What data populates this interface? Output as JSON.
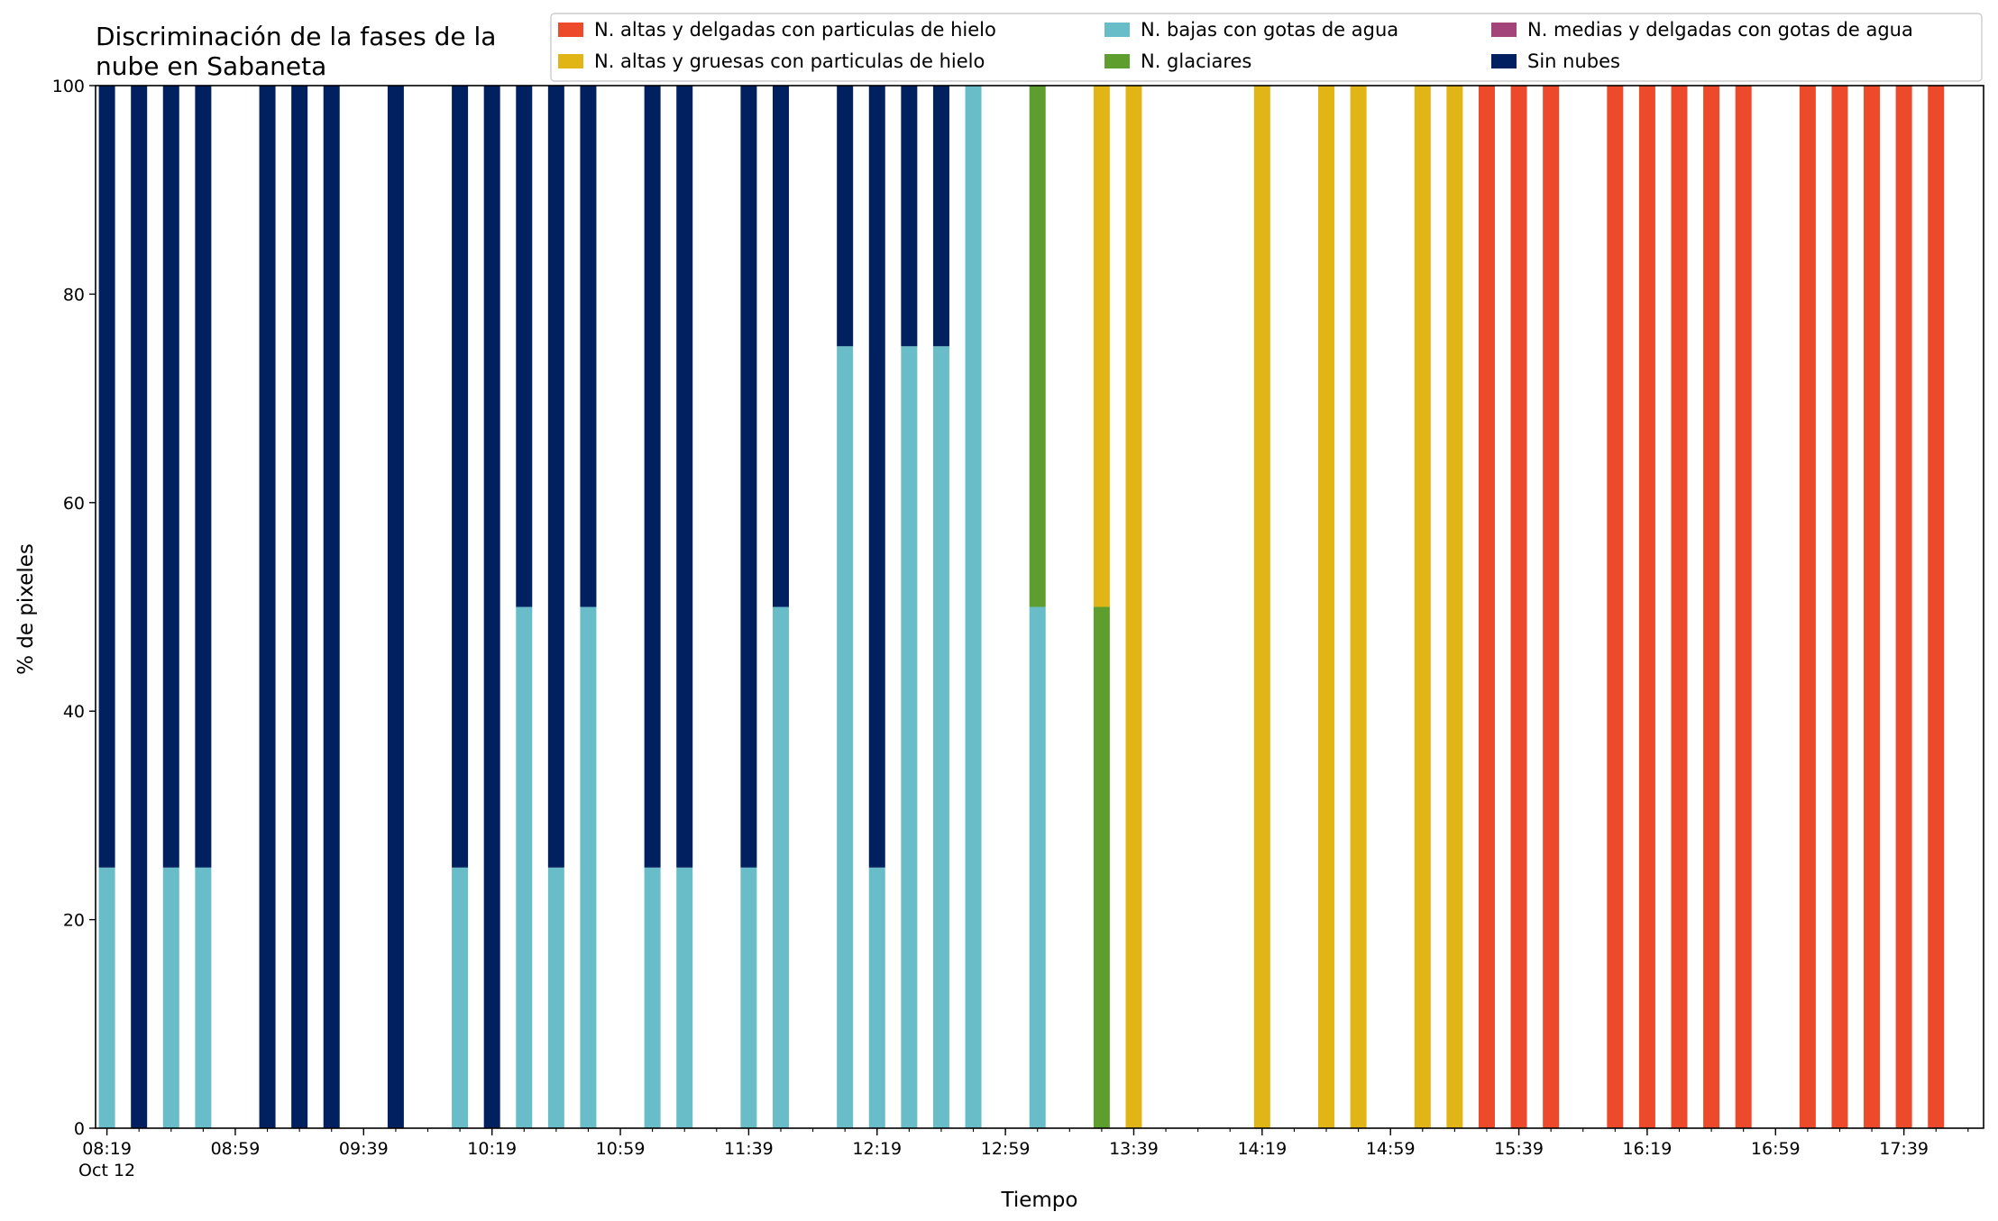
{
  "chart_data": {
    "type": "bar",
    "stacked": true,
    "title_lines": [
      "Discriminación de la fases de la",
      "nube en Sabaneta"
    ],
    "xlabel": "Tiempo",
    "ylabel": "% de pixeles",
    "ylim": [
      0,
      100
    ],
    "yticks": [
      0,
      20,
      40,
      60,
      80,
      100
    ],
    "x_start_minutes": 499,
    "x_end_minutes": 1084,
    "xtick_step_minutes": 40,
    "xminor_step_minutes": 10,
    "xtick_labels": [
      "08:19",
      "08:59",
      "09:39",
      "10:19",
      "10:59",
      "11:39",
      "12:19",
      "12:59",
      "13:39",
      "14:19",
      "14:59",
      "15:39",
      "16:19",
      "16:59",
      "17:39"
    ],
    "xtick_date": "Oct 12",
    "grid": false,
    "legend_position": "top-right",
    "legend_columns": 3,
    "series": [
      {
        "name": "N. altas y delgadas con particulas de hielo",
        "color": "#ED4A2C"
      },
      {
        "name": "N. altas y gruesas con particulas de hielo",
        "color": "#E2B516"
      },
      {
        "name": "N. bajas con gotas de agua",
        "color": "#68BDC8"
      },
      {
        "name": "N. glaciares",
        "color": "#5E9E2E"
      },
      {
        "name": "N. medias y delgadas con gotas de agua",
        "color": "#A3457A"
      },
      {
        "name": "Sin nubes",
        "color": "#012060"
      }
    ],
    "stack_order": [
      "N. bajas con gotas de agua",
      "N. glaciares",
      "N. altas y gruesas con particulas de hielo",
      "N. altas y delgadas con particulas de hielo",
      "N. medias y delgadas con gotas de agua",
      "Sin nubes"
    ],
    "bars": [
      {
        "time": "08:19",
        "values": {
          "N. bajas con gotas de agua": 25,
          "Sin nubes": 75
        }
      },
      {
        "time": "08:29",
        "values": {
          "Sin nubes": 100
        }
      },
      {
        "time": "08:39",
        "values": {
          "N. bajas con gotas de agua": 25,
          "Sin nubes": 75
        }
      },
      {
        "time": "08:49",
        "values": {
          "N. bajas con gotas de agua": 25,
          "Sin nubes": 75
        }
      },
      {
        "time": "09:09",
        "values": {
          "Sin nubes": 100
        }
      },
      {
        "time": "09:19",
        "values": {
          "Sin nubes": 100
        }
      },
      {
        "time": "09:29",
        "values": {
          "Sin nubes": 100
        }
      },
      {
        "time": "09:49",
        "values": {
          "Sin nubes": 100
        }
      },
      {
        "time": "10:09",
        "values": {
          "N. bajas con gotas de agua": 25,
          "Sin nubes": 75
        }
      },
      {
        "time": "10:19",
        "values": {
          "Sin nubes": 100
        }
      },
      {
        "time": "10:29",
        "values": {
          "N. bajas con gotas de agua": 50,
          "Sin nubes": 50
        }
      },
      {
        "time": "10:39",
        "values": {
          "N. bajas con gotas de agua": 25,
          "Sin nubes": 75
        }
      },
      {
        "time": "10:49",
        "values": {
          "N. bajas con gotas de agua": 50,
          "Sin nubes": 50
        }
      },
      {
        "time": "11:09",
        "values": {
          "N. bajas con gotas de agua": 25,
          "Sin nubes": 75
        }
      },
      {
        "time": "11:19",
        "values": {
          "N. bajas con gotas de agua": 25,
          "Sin nubes": 75
        }
      },
      {
        "time": "11:39",
        "values": {
          "N. bajas con gotas de agua": 25,
          "Sin nubes": 75
        }
      },
      {
        "time": "11:49",
        "values": {
          "N. bajas con gotas de agua": 50,
          "Sin nubes": 50
        }
      },
      {
        "time": "12:09",
        "values": {
          "N. bajas con gotas de agua": 75,
          "Sin nubes": 25
        }
      },
      {
        "time": "12:19",
        "values": {
          "N. bajas con gotas de agua": 25,
          "Sin nubes": 75
        }
      },
      {
        "time": "12:29",
        "values": {
          "N. bajas con gotas de agua": 75,
          "Sin nubes": 25
        }
      },
      {
        "time": "12:39",
        "values": {
          "N. bajas con gotas de agua": 75,
          "Sin nubes": 25
        }
      },
      {
        "time": "12:49",
        "values": {
          "N. bajas con gotas de agua": 100
        }
      },
      {
        "time": "13:09",
        "values": {
          "N. bajas con gotas de agua": 50,
          "N. glaciares": 50
        }
      },
      {
        "time": "13:29",
        "values": {
          "N. altas y gruesas con particulas de hielo": 50,
          "N. glaciares": 50
        }
      },
      {
        "time": "13:39",
        "values": {
          "N. altas y gruesas con particulas de hielo": 100
        }
      },
      {
        "time": "14:19",
        "values": {
          "N. altas y gruesas con particulas de hielo": 100
        }
      },
      {
        "time": "14:39",
        "values": {
          "N. altas y gruesas con particulas de hielo": 100
        }
      },
      {
        "time": "14:49",
        "values": {
          "N. altas y gruesas con particulas de hielo": 100
        }
      },
      {
        "time": "15:09",
        "values": {
          "N. altas y gruesas con particulas de hielo": 100
        }
      },
      {
        "time": "15:19",
        "values": {
          "N. altas y gruesas con particulas de hielo": 100
        }
      },
      {
        "time": "15:29",
        "values": {
          "N. altas y delgadas con particulas de hielo": 100
        }
      },
      {
        "time": "15:39",
        "values": {
          "N. altas y delgadas con particulas de hielo": 100
        }
      },
      {
        "time": "15:49",
        "values": {
          "N. altas y delgadas con particulas de hielo": 100
        }
      },
      {
        "time": "16:09",
        "values": {
          "N. altas y delgadas con particulas de hielo": 100
        }
      },
      {
        "time": "16:19",
        "values": {
          "N. altas y delgadas con particulas de hielo": 100
        }
      },
      {
        "time": "16:29",
        "values": {
          "N. altas y delgadas con particulas de hielo": 100
        }
      },
      {
        "time": "16:39",
        "values": {
          "N. altas y delgadas con particulas de hielo": 100
        }
      },
      {
        "time": "16:49",
        "values": {
          "N. altas y delgadas con particulas de hielo": 100
        }
      },
      {
        "time": "17:09",
        "values": {
          "N. altas y delgadas con particulas de hielo": 100
        }
      },
      {
        "time": "17:19",
        "values": {
          "N. altas y delgadas con particulas de hielo": 100
        }
      },
      {
        "time": "17:29",
        "values": {
          "N. altas y delgadas con particulas de hielo": 100
        }
      },
      {
        "time": "17:39",
        "values": {
          "N. altas y delgadas con particulas de hielo": 100
        }
      },
      {
        "time": "17:49",
        "values": {
          "N. altas y delgadas con particulas de hielo": 100
        }
      }
    ]
  }
}
